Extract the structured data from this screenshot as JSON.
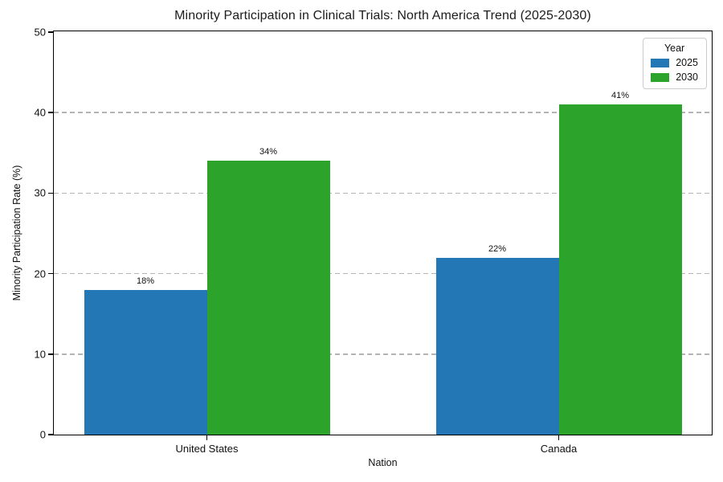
{
  "chart_data": {
    "type": "bar",
    "title": "Minority Participation in Clinical Trials: North America Trend (2025-2030)",
    "xlabel": "Nation",
    "ylabel": "Minority Participation Rate (%)",
    "categories": [
      "United States",
      "Canada"
    ],
    "series": [
      {
        "name": "2025",
        "color": "#2277b4",
        "values": [
          18,
          22
        ]
      },
      {
        "name": "2030",
        "color": "#2ca32b",
        "values": [
          34,
          41
        ]
      }
    ],
    "value_suffix": "%",
    "bar_labels": [
      [
        "18%",
        "22%"
      ],
      [
        "34%",
        "41%"
      ]
    ],
    "ylim": [
      0,
      50
    ],
    "yticks": [
      0,
      10,
      20,
      30,
      40,
      50
    ],
    "gridlines": [
      10,
      20,
      30,
      40
    ],
    "grid_style": "dashed-horizontal",
    "legend": {
      "title": "Year",
      "position": "upper-right",
      "entries": [
        "2025",
        "2030"
      ]
    }
  },
  "colors": {
    "bar_2025": "#2277b4",
    "bar_2030": "#2ca32b",
    "grid": "#b4b4b4",
    "spine": "#000000",
    "text": "#111111",
    "legend_border": "#cccccc",
    "background": "#ffffff"
  }
}
